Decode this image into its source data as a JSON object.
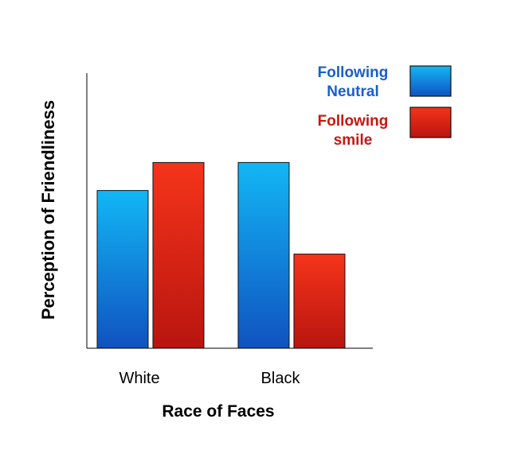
{
  "chart_data": {
    "type": "bar",
    "title": "",
    "xlabel": "Race of Faces",
    "ylabel": "Perception of Friendliness",
    "categories": [
      "White",
      "Black"
    ],
    "series": [
      {
        "name": "Following Neutral",
        "legend_lines": [
          "Following",
          "Neutral"
        ],
        "values": [
          62,
          73
        ],
        "color_top": "#12b7f5",
        "color_bottom": "#1052c0",
        "label_color": "#1a5fc8"
      },
      {
        "name": "Following smile",
        "legend_lines": [
          "Following",
          "smile"
        ],
        "values": [
          73,
          37
        ],
        "color_top": "#f5341a",
        "color_bottom": "#b8150f",
        "label_color": "#c8170f"
      }
    ],
    "ylim": [
      0,
      100
    ],
    "grid": false,
    "y_ticks_shown": false,
    "legend_position": "top-right"
  }
}
